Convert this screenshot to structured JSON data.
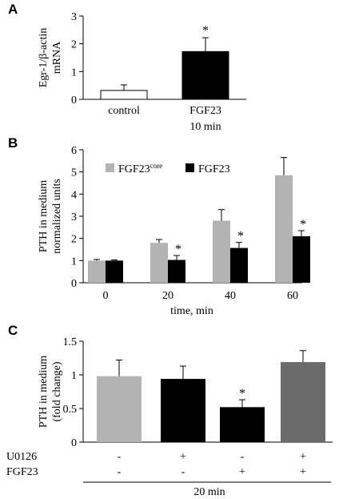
{
  "chart_data": [
    {
      "panel_label": "A",
      "type": "bar",
      "ylabel": [
        "Egr-1/β-actin",
        "mRNA"
      ],
      "yticks": [
        "0",
        "1",
        "2",
        "3"
      ],
      "ylim": [
        0,
        3
      ],
      "categories": [
        "control",
        "FGF23"
      ],
      "category_sublabels": [
        "",
        "10 min"
      ],
      "values": [
        0.32,
        1.72
      ],
      "errors": [
        0.2,
        0.5
      ],
      "fills": [
        "#ffffff",
        "#000000"
      ],
      "significance": [
        "",
        "*"
      ]
    },
    {
      "panel_label": "B",
      "type": "bar",
      "ylabel": [
        "PTH in medium",
        "normalized units"
      ],
      "yticks": [
        "0",
        "1",
        "2",
        "3",
        "4",
        "5",
        "6"
      ],
      "ylim": [
        0,
        6
      ],
      "xlabel": "time, min",
      "categories": [
        "0",
        "20",
        "40",
        "60"
      ],
      "legend": [
        {
          "base": "FGF23",
          "superscript": "core",
          "color": "#b3b3b3"
        },
        {
          "base": "FGF23",
          "superscript": "",
          "color": "#000000"
        }
      ],
      "series": [
        {
          "name": "FGF23core",
          "values": [
            1.0,
            1.8,
            2.8,
            4.85
          ],
          "errors": [
            0.05,
            0.15,
            0.5,
            0.8
          ],
          "significance": [
            "",
            "",
            "",
            ""
          ]
        },
        {
          "name": "FGF23",
          "values": [
            1.0,
            1.03,
            1.57,
            2.1
          ],
          "errors": [
            0.03,
            0.2,
            0.25,
            0.25
          ],
          "significance": [
            "",
            "*",
            "*",
            "*"
          ]
        }
      ]
    },
    {
      "panel_label": "C",
      "type": "bar",
      "ylabel": [
        "PTH in medium",
        "(fold change)"
      ],
      "yticks": [
        "0",
        "0.5",
        "1",
        "1.5"
      ],
      "ylim": [
        0,
        1.5
      ],
      "values": [
        0.98,
        0.94,
        0.52,
        1.19
      ],
      "errors": [
        0.24,
        0.19,
        0.11,
        0.17
      ],
      "fills": [
        "#b3b3b3",
        "#000000",
        "#000000",
        "#6b6b6b"
      ],
      "significance": [
        "",
        "",
        "*",
        ""
      ],
      "treatment_rows": [
        {
          "label": "U0126",
          "signs": [
            "-",
            "+",
            "-",
            "+"
          ]
        },
        {
          "label": "FGF23",
          "signs": [
            "-",
            "-",
            "+",
            "+"
          ]
        }
      ],
      "footer": "20 min"
    }
  ]
}
